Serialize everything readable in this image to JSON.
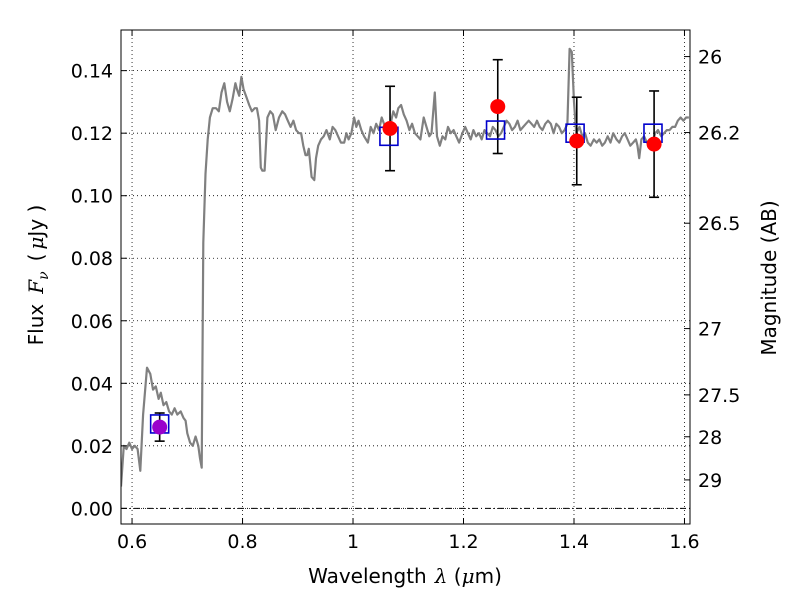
{
  "chart_data": {
    "type": "line",
    "title": "",
    "xlabel_prefix": "Wavelength",
    "xlabel_lambda": "λ",
    "xlabel_unit_open": " (",
    "xlabel_mu": "μ",
    "xlabel_unit_close": "m)",
    "ylabel_prefix": "Flux",
    "ylabel_symbol": "F",
    "ylabel_sub": "ν",
    "ylabel_unit_open": "(",
    "ylabel_mu": "μ",
    "ylabel_unit_close": "Jy )",
    "y2label": "Magnitude (AB)",
    "xlim": [
      0.58,
      1.61
    ],
    "ylim": [
      -0.005,
      0.153
    ],
    "grid": true,
    "x_ticks": [
      0.6,
      0.8,
      1.0,
      1.2,
      1.4,
      1.6
    ],
    "x_tick_labels": [
      "0.6",
      "0.8",
      "1",
      "1.2",
      "1.4",
      "1.6"
    ],
    "y_ticks": [
      0.0,
      0.02,
      0.04,
      0.06,
      0.08,
      0.1,
      0.12,
      0.14
    ],
    "y_tick_labels": [
      "0.00",
      "0.02",
      "0.04",
      "0.06",
      "0.08",
      "0.10",
      "0.12",
      "0.14"
    ],
    "y2_ticks": [
      {
        "label": "26",
        "flux": 0.1445
      },
      {
        "label": "26.2",
        "flux": 0.1202
      },
      {
        "label": "26.5",
        "flux": 0.0912
      },
      {
        "label": "27",
        "flux": 0.0575
      },
      {
        "label": "27.5",
        "flux": 0.0363
      },
      {
        "label": "28",
        "flux": 0.0229
      },
      {
        "label": "29",
        "flux": 0.0091
      }
    ],
    "series": [
      {
        "name": "model spectrum",
        "style": "line",
        "color": "#808080",
        "points": [
          [
            0.58,
            0.007
          ],
          [
            0.585,
            0.02
          ],
          [
            0.59,
            0.019
          ],
          [
            0.595,
            0.021
          ],
          [
            0.6,
            0.019
          ],
          [
            0.605,
            0.02
          ],
          [
            0.61,
            0.019
          ],
          [
            0.615,
            0.012
          ],
          [
            0.62,
            0.03
          ],
          [
            0.627,
            0.045
          ],
          [
            0.633,
            0.043
          ],
          [
            0.638,
            0.038
          ],
          [
            0.643,
            0.039
          ],
          [
            0.648,
            0.035
          ],
          [
            0.652,
            0.037
          ],
          [
            0.657,
            0.033
          ],
          [
            0.662,
            0.034
          ],
          [
            0.667,
            0.031
          ],
          [
            0.672,
            0.03
          ],
          [
            0.677,
            0.032
          ],
          [
            0.682,
            0.03
          ],
          [
            0.688,
            0.031
          ],
          [
            0.693,
            0.029
          ],
          [
            0.697,
            0.028
          ],
          [
            0.7,
            0.024
          ],
          [
            0.705,
            0.021
          ],
          [
            0.71,
            0.02
          ],
          [
            0.715,
            0.023
          ],
          [
            0.72,
            0.02
          ],
          [
            0.723,
            0.016
          ],
          [
            0.726,
            0.013
          ],
          [
            0.729,
            0.085
          ],
          [
            0.733,
            0.107
          ],
          [
            0.737,
            0.118
          ],
          [
            0.741,
            0.125
          ],
          [
            0.746,
            0.128
          ],
          [
            0.752,
            0.128
          ],
          [
            0.757,
            0.127
          ],
          [
            0.762,
            0.133
          ],
          [
            0.767,
            0.136
          ],
          [
            0.772,
            0.13
          ],
          [
            0.777,
            0.127
          ],
          [
            0.782,
            0.131
          ],
          [
            0.787,
            0.136
          ],
          [
            0.79,
            0.134
          ],
          [
            0.794,
            0.132
          ],
          [
            0.798,
            0.138
          ],
          [
            0.802,
            0.134
          ],
          [
            0.808,
            0.131
          ],
          [
            0.812,
            0.129
          ],
          [
            0.817,
            0.127
          ],
          [
            0.822,
            0.128
          ],
          [
            0.826,
            0.128
          ],
          [
            0.83,
            0.124
          ],
          [
            0.833,
            0.109
          ],
          [
            0.836,
            0.108
          ],
          [
            0.84,
            0.108
          ],
          [
            0.845,
            0.125
          ],
          [
            0.85,
            0.127
          ],
          [
            0.855,
            0.126
          ],
          [
            0.86,
            0.121
          ],
          [
            0.866,
            0.125
          ],
          [
            0.872,
            0.127
          ],
          [
            0.877,
            0.126
          ],
          [
            0.882,
            0.124
          ],
          [
            0.887,
            0.122
          ],
          [
            0.892,
            0.124
          ],
          [
            0.897,
            0.121
          ],
          [
            0.902,
            0.12
          ],
          [
            0.906,
            0.12
          ],
          [
            0.91,
            0.116
          ],
          [
            0.914,
            0.113
          ],
          [
            0.917,
            0.113
          ],
          [
            0.92,
            0.115
          ],
          [
            0.925,
            0.106
          ],
          [
            0.93,
            0.105
          ],
          [
            0.933,
            0.112
          ],
          [
            0.937,
            0.116
          ],
          [
            0.942,
            0.118
          ],
          [
            0.947,
            0.119
          ],
          [
            0.952,
            0.121
          ],
          [
            0.958,
            0.118
          ],
          [
            0.963,
            0.122
          ],
          [
            0.968,
            0.121
          ],
          [
            0.973,
            0.119
          ],
          [
            0.978,
            0.117
          ],
          [
            0.984,
            0.117
          ],
          [
            0.988,
            0.12
          ],
          [
            0.992,
            0.118
          ],
          [
            0.997,
            0.12
          ],
          [
            1.002,
            0.125
          ],
          [
            1.006,
            0.122
          ],
          [
            1.01,
            0.124
          ],
          [
            1.015,
            0.121
          ],
          [
            1.02,
            0.119
          ],
          [
            1.027,
            0.117
          ],
          [
            1.032,
            0.122
          ],
          [
            1.037,
            0.12
          ],
          [
            1.042,
            0.123
          ],
          [
            1.047,
            0.121
          ],
          [
            1.052,
            0.125
          ],
          [
            1.058,
            0.122
          ],
          [
            1.064,
            0.12
          ],
          [
            1.068,
            0.123
          ],
          [
            1.073,
            0.127
          ],
          [
            1.078,
            0.125
          ],
          [
            1.082,
            0.128
          ],
          [
            1.087,
            0.129
          ],
          [
            1.092,
            0.126
          ],
          [
            1.097,
            0.124
          ],
          [
            1.102,
            0.121
          ],
          [
            1.107,
            0.123
          ],
          [
            1.112,
            0.12
          ],
          [
            1.117,
            0.119
          ],
          [
            1.122,
            0.118
          ],
          [
            1.128,
            0.125
          ],
          [
            1.133,
            0.122
          ],
          [
            1.138,
            0.119
          ],
          [
            1.142,
            0.12
          ],
          [
            1.148,
            0.133
          ],
          [
            1.152,
            0.119
          ],
          [
            1.157,
            0.116
          ],
          [
            1.162,
            0.119
          ],
          [
            1.167,
            0.118
          ],
          [
            1.172,
            0.122
          ],
          [
            1.177,
            0.12
          ],
          [
            1.182,
            0.121
          ],
          [
            1.187,
            0.119
          ],
          [
            1.192,
            0.117
          ],
          [
            1.198,
            0.12
          ],
          [
            1.203,
            0.122
          ],
          [
            1.208,
            0.12
          ],
          [
            1.213,
            0.118
          ],
          [
            1.218,
            0.121
          ],
          [
            1.223,
            0.119
          ],
          [
            1.228,
            0.12
          ],
          [
            1.233,
            0.118
          ],
          [
            1.238,
            0.121
          ],
          [
            1.243,
            0.12
          ],
          [
            1.248,
            0.119
          ],
          [
            1.253,
            0.122
          ],
          [
            1.258,
            0.121
          ],
          [
            1.263,
            0.119
          ],
          [
            1.268,
            0.12
          ],
          [
            1.273,
            0.122
          ],
          [
            1.278,
            0.124
          ],
          [
            1.283,
            0.123
          ],
          [
            1.288,
            0.121
          ],
          [
            1.293,
            0.122
          ],
          [
            1.298,
            0.124
          ],
          [
            1.303,
            0.121
          ],
          [
            1.308,
            0.122
          ],
          [
            1.313,
            0.123
          ],
          [
            1.318,
            0.124
          ],
          [
            1.323,
            0.123
          ],
          [
            1.328,
            0.122
          ],
          [
            1.333,
            0.124
          ],
          [
            1.338,
            0.122
          ],
          [
            1.343,
            0.121
          ],
          [
            1.348,
            0.123
          ],
          [
            1.353,
            0.124
          ],
          [
            1.358,
            0.123
          ],
          [
            1.363,
            0.12
          ],
          [
            1.368,
            0.123
          ],
          [
            1.373,
            0.122
          ],
          [
            1.378,
            0.12
          ],
          [
            1.383,
            0.121
          ],
          [
            1.388,
            0.123
          ],
          [
            1.392,
            0.147
          ],
          [
            1.396,
            0.146
          ],
          [
            1.4,
            0.13
          ],
          [
            1.404,
            0.12
          ],
          [
            1.41,
            0.122
          ],
          [
            1.415,
            0.119
          ],
          [
            1.42,
            0.12
          ],
          [
            1.425,
            0.117
          ],
          [
            1.43,
            0.116
          ],
          [
            1.436,
            0.118
          ],
          [
            1.441,
            0.117
          ],
          [
            1.446,
            0.118
          ],
          [
            1.451,
            0.116
          ],
          [
            1.456,
            0.117
          ],
          [
            1.461,
            0.119
          ],
          [
            1.466,
            0.117
          ],
          [
            1.471,
            0.12
          ],
          [
            1.477,
            0.118
          ],
          [
            1.482,
            0.117
          ],
          [
            1.487,
            0.119
          ],
          [
            1.492,
            0.12
          ],
          [
            1.497,
            0.118
          ],
          [
            1.502,
            0.116
          ],
          [
            1.507,
            0.117
          ],
          [
            1.512,
            0.118
          ],
          [
            1.515,
            0.116
          ],
          [
            1.518,
            0.112
          ],
          [
            1.522,
            0.118
          ],
          [
            1.527,
            0.119
          ],
          [
            1.532,
            0.117
          ],
          [
            1.537,
            0.118
          ],
          [
            1.542,
            0.117
          ],
          [
            1.547,
            0.12
          ],
          [
            1.552,
            0.121
          ],
          [
            1.558,
            0.119
          ],
          [
            1.563,
            0.12
          ],
          [
            1.568,
            0.121
          ],
          [
            1.573,
            0.121
          ],
          [
            1.578,
            0.122
          ],
          [
            1.583,
            0.122
          ],
          [
            1.588,
            0.124
          ],
          [
            1.593,
            0.125
          ],
          [
            1.598,
            0.124
          ],
          [
            1.603,
            0.125
          ],
          [
            1.608,
            0.125
          ]
        ]
      },
      {
        "name": "model band flux",
        "style": "open-square",
        "color": "#0000cc",
        "x": [
          0.65,
          1.065,
          1.258,
          1.402,
          1.543
        ],
        "y": [
          0.027,
          0.119,
          0.121,
          0.12,
          0.12
        ]
      },
      {
        "name": "observed flux",
        "style": "filled-circle",
        "color": "#ff0000",
        "blend_color": "#9900cc",
        "x": [
          0.65,
          1.067,
          1.262,
          1.405,
          1.545
        ],
        "y": [
          0.026,
          0.1215,
          0.1285,
          0.1175,
          0.1165
        ],
        "err": [
          0.0045,
          0.0135,
          0.015,
          0.014,
          0.017
        ]
      }
    ]
  }
}
